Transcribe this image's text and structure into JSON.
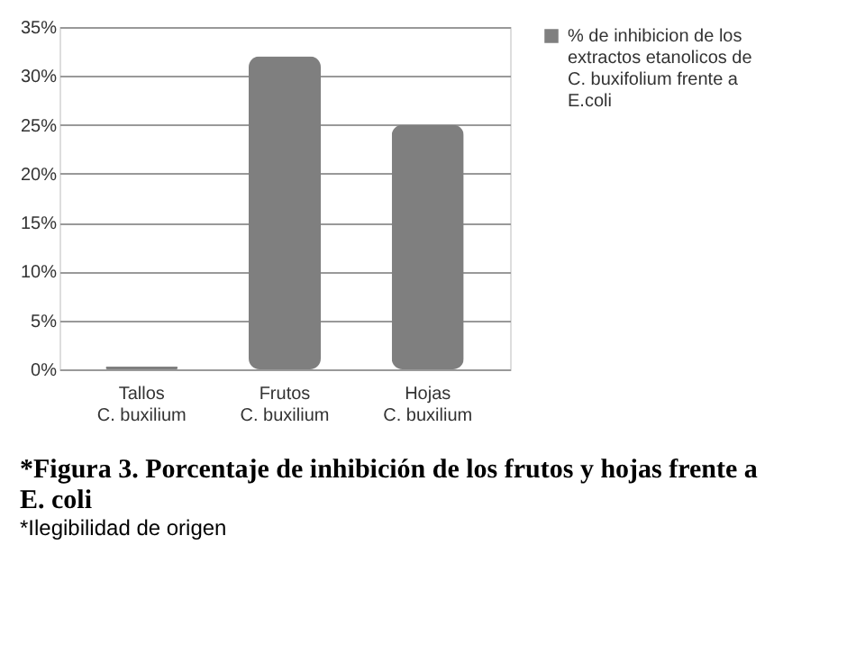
{
  "chart_data": {
    "type": "bar",
    "title": "*Figura 3. Porcentaje de inhibición de los frutos y hojas frente a E. coli",
    "annotations": [
      "*Ilegibilidad de origen"
    ],
    "categories": [
      "Tallos\nC. buxilium",
      "Frutos\nC. buxilium",
      "Hojas\nC. buxilium"
    ],
    "series": [
      {
        "name": "% de inhibicion de los extractos etanolicos de C. buxifolium frente a E.coli",
        "color": "#7f7f7f",
        "values": [
          0.3,
          32,
          25
        ]
      }
    ],
    "ylim": [
      0,
      35
    ],
    "yticks": [
      {
        "value": 0,
        "label": "0%"
      },
      {
        "value": 5,
        "label": "5%"
      },
      {
        "value": 10,
        "label": "10%"
      },
      {
        "value": 15,
        "label": "15%"
      },
      {
        "value": 20,
        "label": "20%"
      },
      {
        "value": 25,
        "label": "25%"
      },
      {
        "value": 30,
        "label": "30%"
      },
      {
        "value": 35,
        "label": "35%"
      }
    ],
    "grid": "y",
    "legend": "right"
  }
}
